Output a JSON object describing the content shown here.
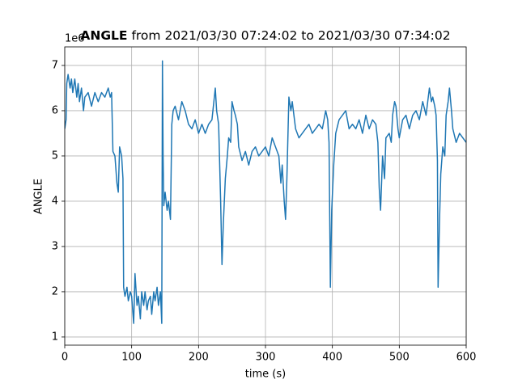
{
  "chart_data": {
    "type": "line",
    "title_bold": "ANGLE",
    "title": " from 2021/03/30 07:24:02 to 2021/03/30 07:34:02",
    "x_label": "time (s)",
    "y_label": "ANGLE",
    "y_offset_label": "1e6",
    "xlim": [
      0,
      600
    ],
    "xticks": [
      0,
      100,
      200,
      300,
      400,
      500,
      600
    ],
    "ylim": [
      0.82,
      7.41
    ],
    "yticks": [
      1,
      2,
      3,
      4,
      5,
      6,
      7
    ],
    "grid": true,
    "x": [
      0,
      2,
      3,
      5,
      8,
      10,
      12,
      15,
      18,
      20,
      22,
      25,
      28,
      30,
      35,
      40,
      45,
      50,
      55,
      60,
      65,
      68,
      70,
      72,
      75,
      78,
      80,
      82,
      85,
      87,
      88,
      90,
      93,
      95,
      98,
      100,
      103,
      105,
      108,
      110,
      113,
      115,
      118,
      120,
      123,
      125,
      128,
      130,
      133,
      135,
      138,
      140,
      143,
      145,
      146,
      147,
      148,
      150,
      153,
      155,
      158,
      160,
      162,
      165,
      170,
      175,
      180,
      185,
      190,
      195,
      200,
      205,
      210,
      215,
      220,
      225,
      227,
      230,
      233,
      235,
      237,
      240,
      243,
      245,
      248,
      250,
      253,
      255,
      258,
      260,
      265,
      270,
      275,
      280,
      285,
      290,
      295,
      300,
      305,
      310,
      315,
      320,
      323,
      325,
      328,
      330,
      332,
      335,
      338,
      340,
      345,
      350,
      355,
      360,
      365,
      370,
      375,
      380,
      385,
      390,
      393,
      395,
      397,
      399,
      402,
      405,
      410,
      415,
      420,
      425,
      430,
      435,
      440,
      445,
      450,
      455,
      460,
      465,
      468,
      470,
      472,
      475,
      478,
      480,
      485,
      488,
      490,
      493,
      495,
      498,
      500,
      505,
      510,
      515,
      520,
      525,
      530,
      535,
      540,
      545,
      548,
      550,
      553,
      555,
      557,
      558,
      560,
      562,
      565,
      568,
      570,
      573,
      575,
      578,
      580,
      585,
      590,
      595,
      600
    ],
    "series": [
      {
        "name": "ANGLE",
        "color": "#1f77b4",
        "values": [
          5.6,
          5.8,
          6.6,
          6.8,
          6.5,
          6.7,
          6.4,
          6.7,
          6.3,
          6.6,
          6.2,
          6.5,
          6.0,
          6.3,
          6.4,
          6.1,
          6.4,
          6.2,
          6.4,
          6.3,
          6.5,
          6.3,
          6.4,
          5.1,
          5.0,
          4.4,
          4.2,
          5.2,
          5.0,
          4.5,
          2.1,
          1.9,
          2.1,
          1.8,
          2.0,
          1.9,
          1.3,
          2.4,
          1.7,
          1.9,
          1.4,
          2.0,
          1.7,
          2.0,
          1.6,
          1.8,
          1.9,
          1.5,
          2.0,
          1.8,
          2.1,
          1.7,
          2.0,
          1.3,
          7.1,
          5.0,
          3.9,
          4.2,
          3.8,
          4.0,
          3.6,
          5.7,
          6.0,
          6.1,
          5.8,
          6.2,
          6.0,
          5.7,
          5.6,
          5.8,
          5.5,
          5.7,
          5.5,
          5.7,
          5.8,
          6.5,
          6.0,
          5.7,
          4.0,
          2.6,
          3.5,
          4.5,
          5.0,
          5.4,
          5.3,
          6.2,
          6.0,
          5.9,
          5.7,
          5.2,
          4.9,
          5.1,
          4.8,
          5.1,
          5.2,
          5.0,
          5.1,
          5.2,
          5.0,
          5.4,
          5.2,
          5.0,
          4.4,
          4.8,
          4.0,
          3.6,
          4.5,
          6.3,
          6.0,
          6.2,
          5.6,
          5.4,
          5.5,
          5.6,
          5.7,
          5.5,
          5.6,
          5.7,
          5.6,
          6.0,
          5.8,
          5.3,
          2.1,
          3.8,
          4.8,
          5.5,
          5.8,
          5.9,
          6.0,
          5.6,
          5.7,
          5.6,
          5.8,
          5.5,
          5.9,
          5.6,
          5.8,
          5.7,
          5.3,
          4.3,
          3.8,
          5.0,
          4.5,
          5.4,
          5.5,
          5.3,
          5.9,
          6.2,
          6.1,
          5.6,
          5.4,
          5.8,
          5.9,
          5.6,
          5.9,
          6.0,
          5.8,
          6.2,
          5.9,
          6.5,
          6.2,
          6.3,
          6.1,
          5.9,
          4.9,
          2.1,
          3.5,
          4.6,
          5.2,
          5.0,
          5.9,
          6.2,
          6.5,
          6.0,
          5.6,
          5.3,
          5.5,
          5.4,
          5.3
        ]
      }
    ]
  }
}
